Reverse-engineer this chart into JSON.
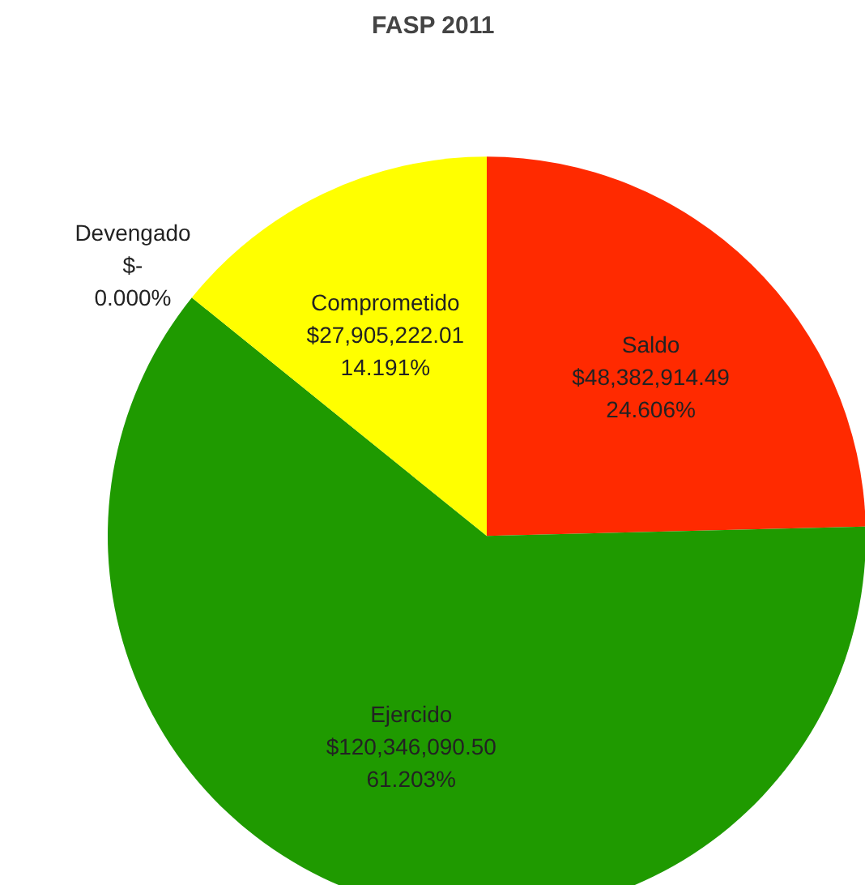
{
  "chart_data": {
    "type": "pie",
    "title": "FASP 2011",
    "categories": [
      "Saldo",
      "Ejercido",
      "Devengado",
      "Comprometido"
    ],
    "values": [
      48382914.49,
      120346090.5,
      0,
      27905222.01
    ],
    "value_labels": [
      "$48,382,914.49\n24.606%",
      "$120,346,090.50\n61.203%",
      "$-\n0.000%",
      "$27,905,222.01\n14.191%"
    ],
    "colors": [
      "#ff2a00",
      "#1f9a00",
      "#4f81bd",
      "#ffff00"
    ]
  }
}
